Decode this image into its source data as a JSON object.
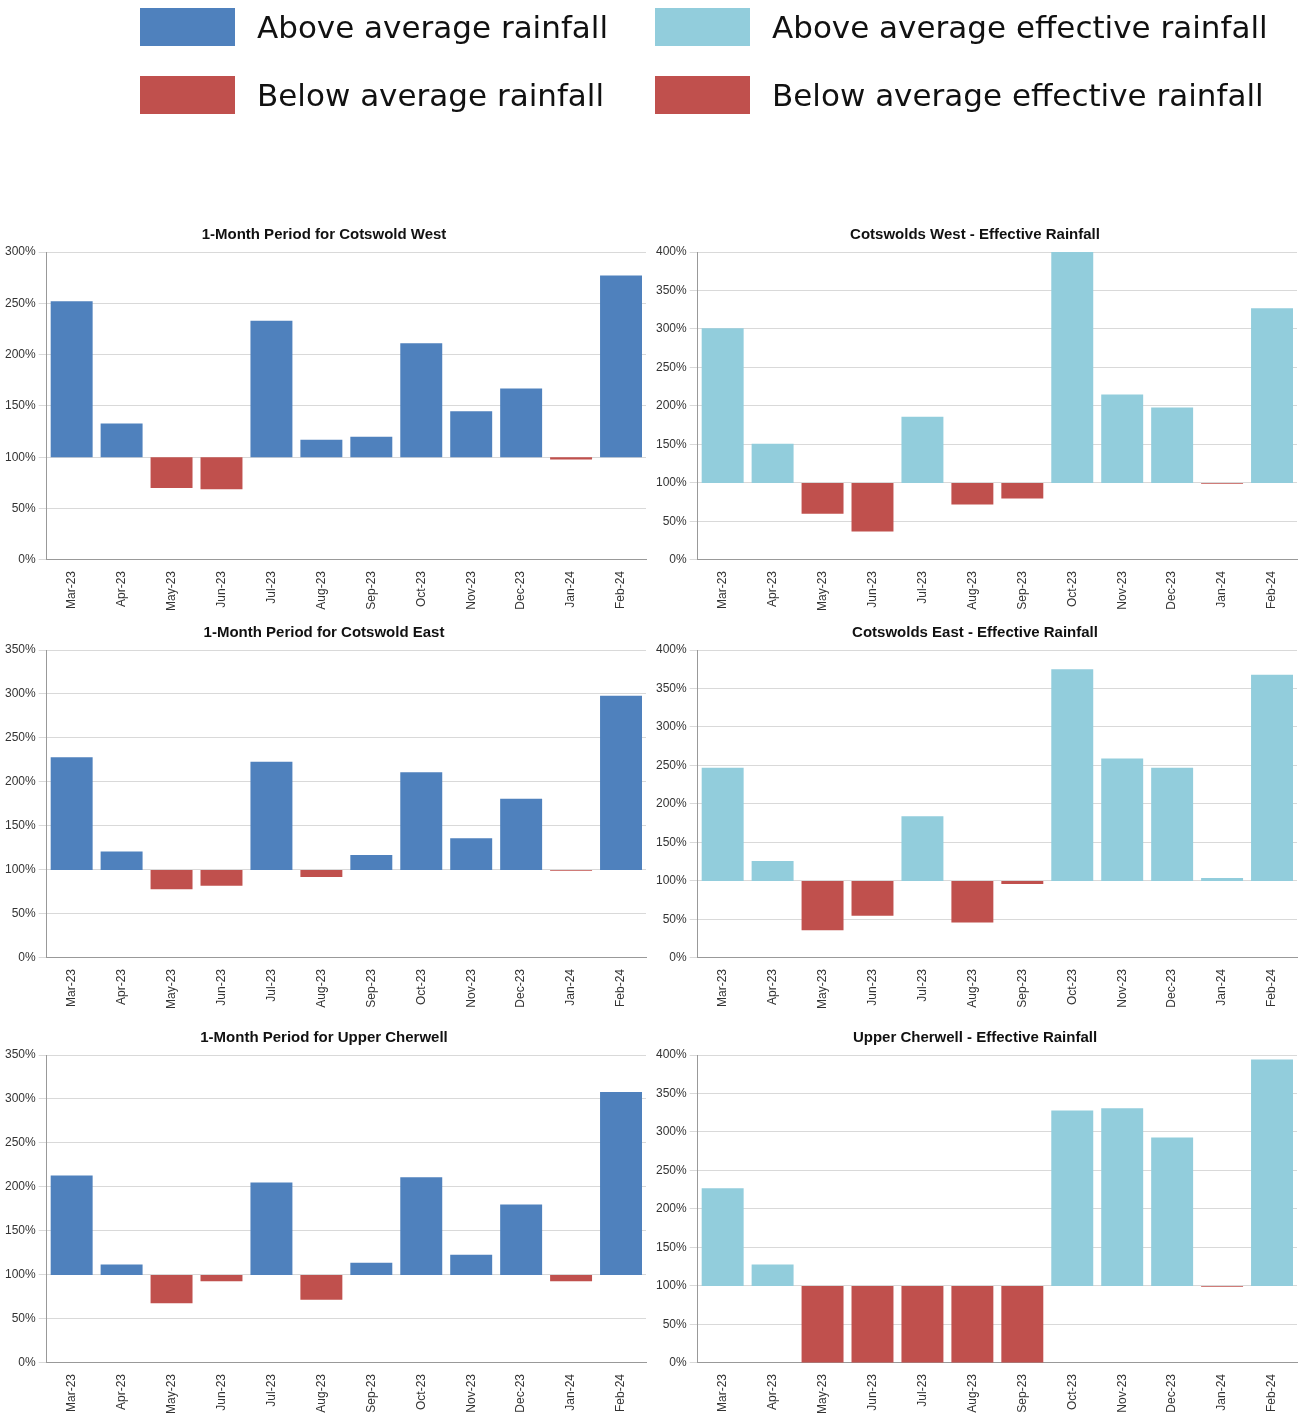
{
  "chart_data": [
    {
      "type": "bar",
      "title": "1-Month Period for Cotswold West",
      "categories": [
        "Mar-23",
        "Apr-23",
        "May-23",
        "Jun-23",
        "Jul-23",
        "Aug-23",
        "Sep-23",
        "Oct-23",
        "Nov-23",
        "Dec-23",
        "Jan-24",
        "Feb-24"
      ],
      "series": [
        {
          "name": "Above average rainfall",
          "color": "#4f81bd",
          "base": [
            100,
            100,
            null,
            null,
            100,
            100,
            100,
            100,
            100,
            100,
            null,
            100
          ],
          "values": [
            152,
            33,
            null,
            null,
            133,
            17,
            20,
            111,
            45,
            67,
            null,
            177
          ]
        },
        {
          "name": "Below average rainfall",
          "color": "#c0504d",
          "base": [
            null,
            null,
            100,
            100,
            null,
            null,
            null,
            null,
            null,
            null,
            100,
            null
          ],
          "values": [
            null,
            null,
            -30,
            -31,
            null,
            null,
            null,
            null,
            null,
            null,
            -2,
            null
          ]
        }
      ],
      "ylim": [
        0,
        300
      ],
      "yticks": [
        {
          "value": 0,
          "label": "0%"
        },
        {
          "value": 50,
          "label": "50%"
        },
        {
          "value": 100,
          "label": "100%"
        },
        {
          "value": 150,
          "label": "150%"
        },
        {
          "value": 200,
          "label": "200%"
        },
        {
          "value": 250,
          "label": "250%"
        },
        {
          "value": 300,
          "label": "300%"
        }
      ],
      "grid": "y",
      "legend": "top"
    },
    {
      "type": "bar",
      "title": "Cotswolds West - Effective Rainfall",
      "categories": [
        "Mar-23",
        "Apr-23",
        "May-23",
        "Jun-23",
        "Jul-23",
        "Aug-23",
        "Sep-23",
        "Oct-23",
        "Nov-23",
        "Dec-23",
        "Jan-24",
        "Feb-24"
      ],
      "series": [
        {
          "name": "Above average effective rainfall",
          "color": "#92cddc",
          "base": [
            100,
            100,
            null,
            null,
            100,
            null,
            null,
            100,
            100,
            100,
            null,
            100
          ],
          "values": [
            201,
            51,
            null,
            null,
            86,
            null,
            null,
            300,
            115,
            98,
            null,
            227
          ]
        },
        {
          "name": "Below average effective rainfall",
          "color": "#c0504d",
          "base": [
            null,
            null,
            100,
            100,
            null,
            100,
            100,
            null,
            null,
            null,
            100,
            null
          ],
          "values": [
            null,
            null,
            -40,
            -63,
            null,
            -28,
            -20,
            null,
            null,
            null,
            -1,
            null
          ]
        }
      ],
      "ylim": [
        0,
        400
      ],
      "yticks": [
        {
          "value": 0,
          "label": "0%"
        },
        {
          "value": 50,
          "label": "50%"
        },
        {
          "value": 100,
          "label": "100%"
        },
        {
          "value": 150,
          "label": "150%"
        },
        {
          "value": 200,
          "label": "200%"
        },
        {
          "value": 250,
          "label": "250%"
        },
        {
          "value": 300,
          "label": "300%"
        },
        {
          "value": 350,
          "label": "350%"
        },
        {
          "value": 400,
          "label": "400%"
        }
      ],
      "grid": "y",
      "legend": "top"
    },
    {
      "type": "bar",
      "title": "1-Month Period for Cotswold East",
      "categories": [
        "Mar-23",
        "Apr-23",
        "May-23",
        "Jun-23",
        "Jul-23",
        "Aug-23",
        "Sep-23",
        "Oct-23",
        "Nov-23",
        "Dec-23",
        "Jan-24",
        "Feb-24"
      ],
      "series": [
        {
          "color": "#4f81bd",
          "base": [
            100,
            100,
            null,
            null,
            100,
            null,
            100,
            100,
            100,
            100,
            null,
            100
          ],
          "values": [
            128,
            21,
            null,
            null,
            123,
            null,
            17,
            111,
            36,
            81,
            null,
            198
          ]
        },
        {
          "color": "#c0504d",
          "base": [
            null,
            null,
            100,
            100,
            null,
            100,
            null,
            null,
            null,
            null,
            100,
            null
          ],
          "values": [
            null,
            null,
            -22,
            -18,
            null,
            -8,
            null,
            null,
            null,
            null,
            -1,
            null
          ]
        }
      ],
      "ylim": [
        0,
        350
      ],
      "yticks": [
        {
          "value": 0,
          "label": "0%"
        },
        {
          "value": 50,
          "label": "50%"
        },
        {
          "value": 100,
          "label": "100%"
        },
        {
          "value": 150,
          "label": "150%"
        },
        {
          "value": 200,
          "label": "200%"
        },
        {
          "value": 250,
          "label": "250%"
        },
        {
          "value": 300,
          "label": "300%"
        },
        {
          "value": 350,
          "label": "350%"
        }
      ],
      "grid": "y"
    },
    {
      "type": "bar",
      "title": "Cotswolds East - Effective Rainfall",
      "categories": [
        "Mar-23",
        "Apr-23",
        "May-23",
        "Jun-23",
        "Jul-23",
        "Aug-23",
        "Sep-23",
        "Oct-23",
        "Nov-23",
        "Dec-23",
        "Jan-24",
        "Feb-24"
      ],
      "series": [
        {
          "color": "#92cddc",
          "base": [
            100,
            100,
            null,
            null,
            100,
            null,
            null,
            100,
            100,
            100,
            100,
            100
          ],
          "values": [
            147,
            26,
            null,
            null,
            84,
            null,
            null,
            275,
            159,
            147,
            4,
            268
          ]
        },
        {
          "color": "#c0504d",
          "base": [
            null,
            null,
            100,
            100,
            null,
            100,
            100,
            null,
            null,
            null,
            null,
            null
          ],
          "values": [
            null,
            null,
            -64,
            -45,
            null,
            -54,
            -4,
            null,
            null,
            null,
            null,
            null
          ]
        }
      ],
      "ylim": [
        0,
        400
      ],
      "yticks": [
        {
          "value": 0,
          "label": "0%"
        },
        {
          "value": 50,
          "label": "50%"
        },
        {
          "value": 100,
          "label": "100%"
        },
        {
          "value": 150,
          "label": "150%"
        },
        {
          "value": 200,
          "label": "200%"
        },
        {
          "value": 250,
          "label": "250%"
        },
        {
          "value": 300,
          "label": "300%"
        },
        {
          "value": 350,
          "label": "350%"
        },
        {
          "value": 400,
          "label": "400%"
        }
      ],
      "grid": "y"
    },
    {
      "type": "bar",
      "title": "1-Month Period for Upper Cherwell",
      "categories": [
        "Mar-23",
        "Apr-23",
        "May-23",
        "Jun-23",
        "Jul-23",
        "Aug-23",
        "Sep-23",
        "Oct-23",
        "Nov-23",
        "Dec-23",
        "Jan-24",
        "Feb-24"
      ],
      "series": [
        {
          "color": "#4f81bd",
          "base": [
            100,
            100,
            null,
            null,
            100,
            null,
            100,
            100,
            100,
            100,
            null,
            100
          ],
          "values": [
            113,
            12,
            null,
            null,
            105,
            null,
            14,
            111,
            23,
            80,
            null,
            208
          ]
        },
        {
          "color": "#c0504d",
          "base": [
            null,
            null,
            100,
            100,
            null,
            100,
            null,
            null,
            null,
            null,
            100,
            null
          ],
          "values": [
            null,
            null,
            -32,
            -7,
            null,
            -28,
            null,
            null,
            null,
            null,
            -7,
            null
          ]
        }
      ],
      "ylim": [
        0,
        350
      ],
      "yticks": [
        {
          "value": 0,
          "label": "0%"
        },
        {
          "value": 50,
          "label": "50%"
        },
        {
          "value": 100,
          "label": "100%"
        },
        {
          "value": 150,
          "label": "150%"
        },
        {
          "value": 200,
          "label": "200%"
        },
        {
          "value": 250,
          "label": "250%"
        },
        {
          "value": 300,
          "label": "300%"
        },
        {
          "value": 350,
          "label": "350%"
        }
      ],
      "grid": "y"
    },
    {
      "type": "bar",
      "title": "Upper Cherwell - Effective Rainfall",
      "categories": [
        "Mar-23",
        "Apr-23",
        "May-23",
        "Jun-23",
        "Jul-23",
        "Aug-23",
        "Sep-23",
        "Oct-23",
        "Nov-23",
        "Dec-23",
        "Jan-24",
        "Feb-24"
      ],
      "series": [
        {
          "color": "#92cddc",
          "base": [
            100,
            100,
            null,
            null,
            null,
            null,
            null,
            100,
            100,
            100,
            null,
            100
          ],
          "values": [
            127,
            28,
            null,
            null,
            null,
            null,
            null,
            228,
            231,
            193,
            null,
            294
          ]
        },
        {
          "color": "#c0504d",
          "base": [
            null,
            null,
            100,
            100,
            100,
            100,
            100,
            null,
            null,
            null,
            100,
            null
          ],
          "values": [
            null,
            null,
            -100,
            -100,
            -100,
            -100,
            -100,
            null,
            null,
            null,
            -1,
            null
          ]
        }
      ],
      "ylim": [
        0,
        400
      ],
      "yticks": [
        {
          "value": 0,
          "label": "0%"
        },
        {
          "value": 50,
          "label": "50%"
        },
        {
          "value": 100,
          "label": "100%"
        },
        {
          "value": 150,
          "label": "150%"
        },
        {
          "value": 200,
          "label": "200%"
        },
        {
          "value": 250,
          "label": "250%"
        },
        {
          "value": 300,
          "label": "300%"
        },
        {
          "value": 350,
          "label": "350%"
        },
        {
          "value": 400,
          "label": "400%"
        }
      ],
      "grid": "y"
    }
  ]
}
